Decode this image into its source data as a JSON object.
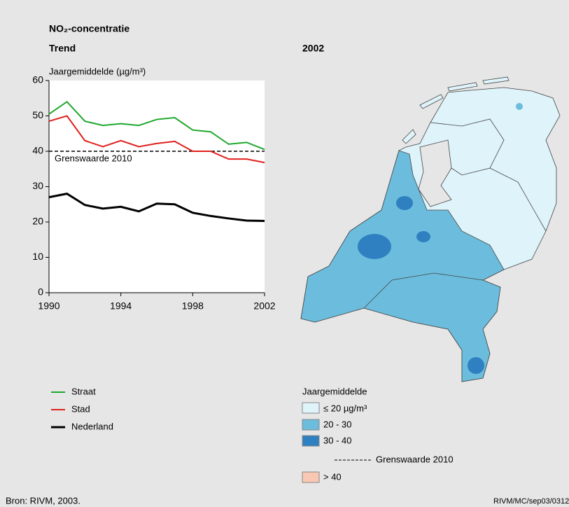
{
  "chart_data": {
    "type": "line",
    "title": "NO₂-concentratie",
    "subtitle": "Trend",
    "y_label": "Jaargemiddelde (µg/m³)",
    "x": [
      1990,
      1991,
      1992,
      1993,
      1994,
      1995,
      1996,
      1997,
      1998,
      1999,
      2000,
      2001,
      2002
    ],
    "series": [
      {
        "name": "Straat",
        "color": "#1fa82c",
        "values": [
          50.5,
          54,
          48.5,
          47.3,
          47.8,
          47.3,
          49,
          49.5,
          46,
          45.5,
          42,
          42.5,
          40.5
        ]
      },
      {
        "name": "Stad",
        "color": "#e0201c",
        "values": [
          48.5,
          50,
          43,
          41.3,
          43,
          41.3,
          42.2,
          42.8,
          40,
          40,
          37.8,
          37.8,
          36.8
        ]
      },
      {
        "name": "Nederland",
        "color": "#000000",
        "values": [
          27,
          28,
          24.8,
          23.8,
          24.3,
          23,
          25.2,
          25,
          22.6,
          21.7,
          21,
          20.4,
          20.3
        ]
      }
    ],
    "reference": {
      "value": 40,
      "label": "Grenswaarde 2010"
    },
    "xlim": [
      1990,
      2002
    ],
    "xticks": [
      1990,
      1994,
      1998,
      2002
    ],
    "ylim": [
      0,
      60
    ],
    "yticks": [
      0,
      10,
      20,
      30,
      40,
      50,
      60
    ]
  },
  "map": {
    "title": "2002",
    "legend_title": "Jaargemiddelde",
    "legend": [
      {
        "label": "≤ 20 µg/m³",
        "color": "#def3fa"
      },
      {
        "label": "20 - 30",
        "color": "#6cbddd"
      },
      {
        "label": "30 - 40",
        "color": "#2f80c0"
      },
      {
        "label": "Grenswaarde 2010"
      },
      {
        "label": "> 40",
        "color": "#f8c8b2"
      }
    ]
  },
  "footer": {
    "source": "Bron: RIVM, 2003.",
    "code": "RIVM/MC/sep03/0312"
  }
}
